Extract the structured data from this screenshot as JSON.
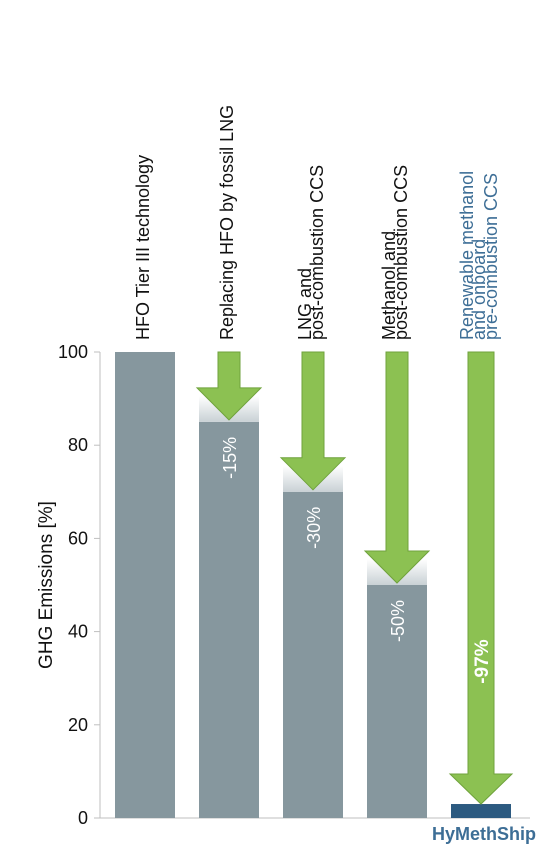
{
  "chart_data": {
    "type": "bar",
    "ylabel": "GHG Emissions [%]",
    "ylim": [
      0,
      100
    ],
    "yticks": [
      0,
      20,
      40,
      60,
      80,
      100
    ],
    "categories": [
      {
        "lines": [
          "HFO Tier III technology"
        ],
        "value": 100,
        "reduction": null,
        "highlight": false
      },
      {
        "lines": [
          "Replacing HFO by fossil LNG"
        ],
        "value": 85,
        "reduction": "-15%",
        "highlight": false
      },
      {
        "lines": [
          "LNG and",
          "post-combustion CCS"
        ],
        "value": 70,
        "reduction": "-30%",
        "highlight": false
      },
      {
        "lines": [
          "Methanol and",
          "post-combustion CCS"
        ],
        "value": 50,
        "reduction": "-50%",
        "highlight": false
      },
      {
        "lines": [
          "Renewable methanol",
          "and onboard",
          "pre-combustion CCS"
        ],
        "value": 3,
        "reduction": "-97%",
        "highlight": true
      }
    ],
    "x_highlight_label": "HyMethShip",
    "colors": {
      "bar": "#86979e",
      "highlight_bar": "#2c5a80",
      "arrow": "#8cc152",
      "arrow_stroke": "#6fa23c",
      "highlight_text": "#3d6e96",
      "text": "#111111"
    }
  }
}
